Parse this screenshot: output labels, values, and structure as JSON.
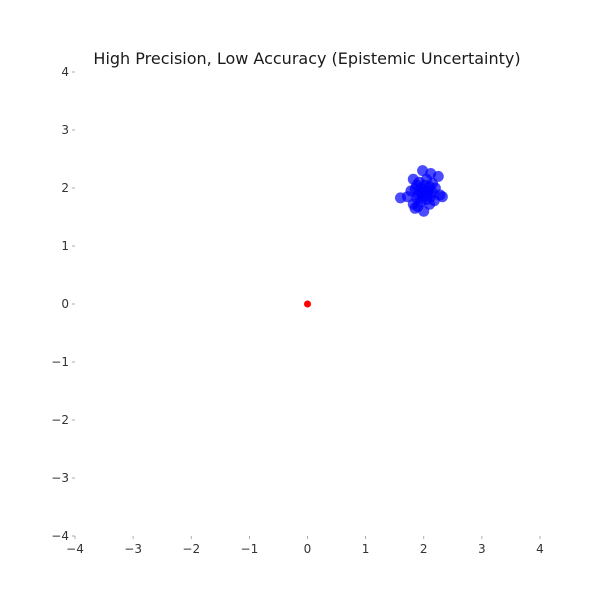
{
  "chart_data": {
    "type": "scatter",
    "title": "High Precision, Low Accuracy (Epistemic Uncertainty)",
    "xlabel": "",
    "ylabel": "",
    "xlim": [
      -4,
      4
    ],
    "ylim": [
      -4,
      4
    ],
    "x_ticks": [
      -4,
      -3,
      -2,
      -1,
      0,
      1,
      2,
      3,
      4
    ],
    "y_ticks": [
      -4,
      -3,
      -2,
      -1,
      0,
      1,
      2,
      3,
      4
    ],
    "x_tick_labels": [
      "−4",
      "−3",
      "−2",
      "−1",
      "0",
      "1",
      "2",
      "3",
      "4"
    ],
    "y_tick_labels": [
      "−4",
      "−3",
      "−2",
      "−1",
      "0",
      "1",
      "2",
      "3",
      "4"
    ],
    "grid": false,
    "aspect": "equal",
    "series": [
      {
        "color": "#0000ff",
        "alpha": 0.7,
        "points": [
          [
            1.98,
            2.3
          ],
          [
            2.12,
            2.25
          ],
          [
            2.25,
            2.2
          ],
          [
            1.82,
            2.15
          ],
          [
            2.05,
            2.15
          ],
          [
            1.92,
            2.1
          ],
          [
            2.15,
            2.08
          ],
          [
            1.88,
            2.05
          ],
          [
            2.02,
            2.05
          ],
          [
            2.1,
            2.02
          ],
          [
            1.95,
            2.0
          ],
          [
            2.2,
            2.0
          ],
          [
            1.85,
            1.98
          ],
          [
            2.0,
            1.97
          ],
          [
            2.08,
            1.95
          ],
          [
            1.78,
            1.95
          ],
          [
            1.95,
            1.92
          ],
          [
            2.15,
            1.92
          ],
          [
            2.05,
            1.9
          ],
          [
            1.9,
            1.88
          ],
          [
            2.28,
            1.88
          ],
          [
            2.12,
            1.85
          ],
          [
            2.32,
            1.85
          ],
          [
            1.72,
            1.85
          ],
          [
            1.98,
            1.84
          ],
          [
            1.6,
            1.83
          ],
          [
            1.88,
            1.82
          ],
          [
            2.05,
            1.8
          ],
          [
            2.18,
            1.78
          ],
          [
            1.95,
            1.76
          ],
          [
            1.82,
            1.72
          ],
          [
            2.1,
            1.72
          ],
          [
            1.9,
            1.68
          ],
          [
            1.85,
            1.65
          ],
          [
            2.0,
            1.6
          ]
        ]
      },
      {
        "color": "#ff0000",
        "points": [
          [
            0,
            0
          ]
        ]
      }
    ]
  }
}
